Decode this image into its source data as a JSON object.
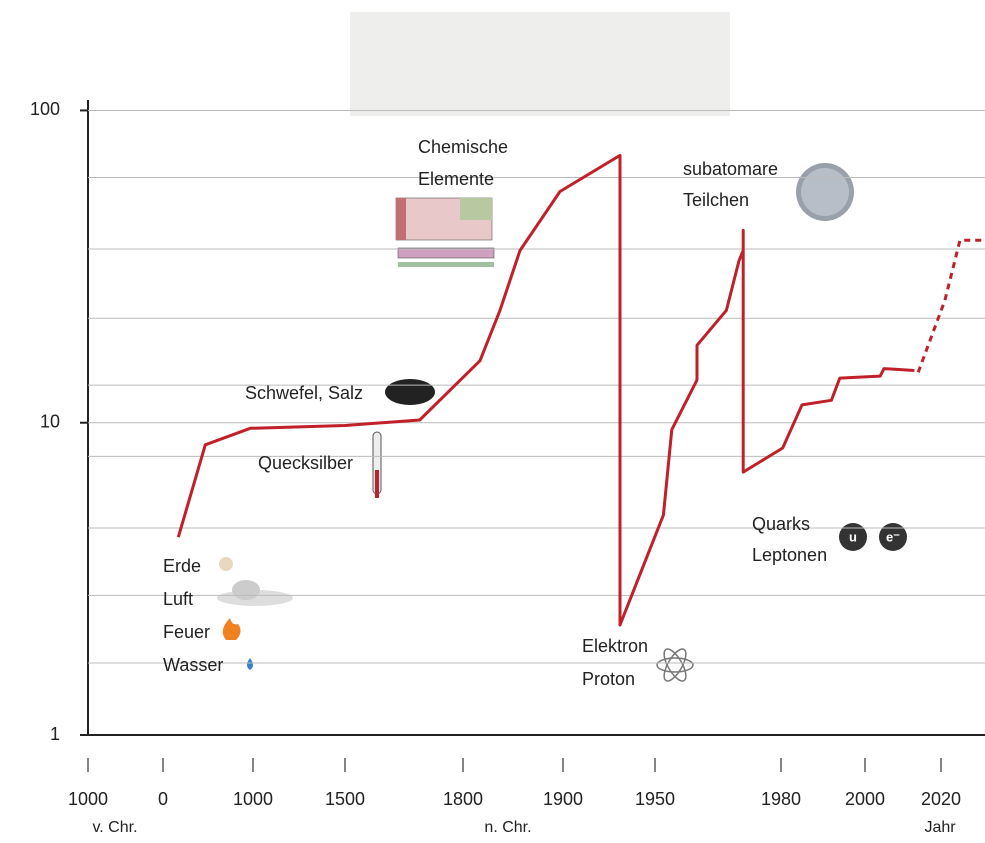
{
  "chart_data": {
    "type": "line",
    "log_y": true,
    "ylim": [
      1,
      108
    ],
    "yticks": [
      1,
      10,
      100
    ],
    "y_minor_ticks": [
      1.7,
      2.8,
      4.6,
      7.8,
      13.2,
      21.6,
      36,
      61
    ],
    "grid": true,
    "xlim": [
      -1000,
      2032
    ],
    "xticks": [
      {
        "value": -1000,
        "label": "1000"
      },
      0,
      1000,
      1500,
      1800,
      1900,
      1950,
      1980,
      2000,
      2020
    ],
    "x_sublabels": [
      "v. Chr.",
      "n. Chr.",
      "Jahr"
    ],
    "series": [
      {
        "color": "#c0202a",
        "style": "solid",
        "x": [
          170,
          470,
          970,
          1500,
          1690,
          1817,
          1837,
          1857,
          1897,
          1931,
          1931,
          1952,
          1954,
          1960,
          1960,
          1967,
          1970,
          1971,
          1971,
          1971,
          1980.4,
          1985,
          1992,
          1994,
          2004,
          2005,
          2013
        ],
        "values": [
          4.3,
          8.5,
          9.6,
          9.8,
          10.2,
          15.8,
          22.9,
          35.6,
          55,
          71.8,
          2.25,
          5.06,
          9.5,
          13.7,
          17.7,
          22.9,
          33,
          35.6,
          41.3,
          6.95,
          8.3,
          11.4,
          11.8,
          13.9,
          14.1,
          14.9,
          14.7
        ]
      },
      {
        "color": "#c0202a",
        "style": "dashed",
        "x": [
          2014,
          2021,
          2025,
          2032
        ],
        "values": [
          14.5,
          24.6,
          38.4,
          38.4
        ]
      }
    ],
    "annotations": [
      "Chemische",
      "Elemente",
      "subatomare",
      "Teilchen",
      "Schwefel, Salz",
      "Quecksilber",
      "Erde",
      "Luft",
      "Feuer",
      "Wasser",
      "Elektron",
      "Proton",
      "Quarks",
      "Leptonen",
      "u",
      "e⁻"
    ]
  }
}
